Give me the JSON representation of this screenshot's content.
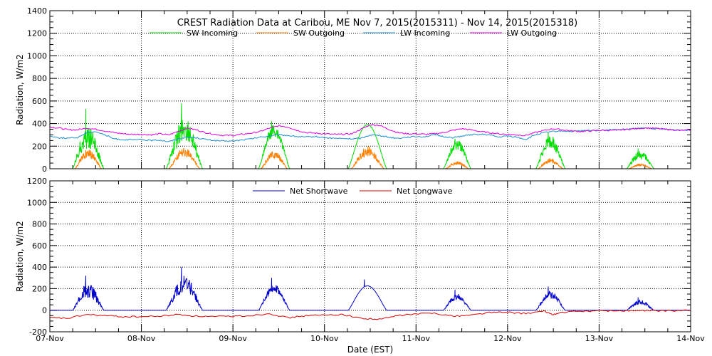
{
  "title": "CREST Radiation Data at Caribou, ME   Nov  7, 2015(2015311) - Nov 14, 2015(2015318)",
  "xlabel": "Date (EST)",
  "x_ticks": [
    "07-Nov",
    "08-Nov",
    "09-Nov",
    "10-Nov",
    "11-Nov",
    "12-Nov",
    "13-Nov",
    "14-Nov"
  ],
  "colors": {
    "sw_in": "#00dd00",
    "sw_out": "#ff7f00",
    "lw_in": "#1e8fd0",
    "lw_out": "#e000e0",
    "net_sw": "#0000cc",
    "net_lw": "#dd0000",
    "grid": "#000000"
  },
  "chart_data": [
    {
      "type": "line",
      "ylabel": "Radiation, W/m2",
      "ylim": [
        0,
        1400
      ],
      "yticks": [
        0,
        200,
        400,
        600,
        800,
        1000,
        1200,
        1400
      ],
      "xlim": [
        0,
        7
      ],
      "grid": true,
      "legend": "top-center",
      "series": [
        {
          "name": "SW Incoming",
          "color_key": "sw_in",
          "kind": "sw_in"
        },
        {
          "name": "SW Outgoing",
          "color_key": "sw_out",
          "kind": "sw_out"
        },
        {
          "name": "LW Incoming",
          "color_key": "lw_in",
          "kind": "lw",
          "points": [
            [
              0,
              290
            ],
            [
              0.1,
              275
            ],
            [
              0.2,
              270
            ],
            [
              0.3,
              275
            ],
            [
              0.4,
              320
            ],
            [
              0.5,
              330
            ],
            [
              0.6,
              300
            ],
            [
              0.7,
              265
            ],
            [
              0.8,
              258
            ],
            [
              0.9,
              255
            ],
            [
              1.0,
              258
            ],
            [
              1.1,
              250
            ],
            [
              1.2,
              255
            ],
            [
              1.3,
              240
            ],
            [
              1.4,
              265
            ],
            [
              1.5,
              280
            ],
            [
              1.6,
              275
            ],
            [
              1.7,
              260
            ],
            [
              1.8,
              250
            ],
            [
              1.9,
              245
            ],
            [
              2.0,
              245
            ],
            [
              2.1,
              255
            ],
            [
              2.2,
              265
            ],
            [
              2.3,
              280
            ],
            [
              2.4,
              290
            ],
            [
              2.5,
              300
            ],
            [
              2.6,
              295
            ],
            [
              2.7,
              285
            ],
            [
              2.8,
              280
            ],
            [
              2.9,
              285
            ],
            [
              3.0,
              275
            ],
            [
              3.1,
              270
            ],
            [
              3.2,
              268
            ],
            [
              3.3,
              265
            ],
            [
              3.4,
              270
            ],
            [
              3.5,
              300
            ],
            [
              3.6,
              295
            ],
            [
              3.7,
              280
            ],
            [
              3.8,
              270
            ],
            [
              3.9,
              280
            ],
            [
              4.0,
              285
            ],
            [
              4.1,
              285
            ],
            [
              4.2,
              300
            ],
            [
              4.3,
              285
            ],
            [
              4.4,
              275
            ],
            [
              4.5,
              290
            ],
            [
              4.6,
              300
            ],
            [
              4.7,
              305
            ],
            [
              4.8,
              300
            ],
            [
              4.9,
              280
            ],
            [
              5.0,
              290
            ],
            [
              5.1,
              280
            ],
            [
              5.2,
              260
            ],
            [
              5.3,
              300
            ],
            [
              5.4,
              320
            ],
            [
              5.5,
              330
            ],
            [
              5.6,
              335
            ],
            [
              5.7,
              330
            ],
            [
              5.8,
              335
            ],
            [
              5.9,
              340
            ],
            [
              6.0,
              340
            ],
            [
              6.1,
              345
            ],
            [
              6.2,
              345
            ],
            [
              6.3,
              350
            ],
            [
              6.4,
              355
            ],
            [
              6.5,
              360
            ],
            [
              6.6,
              355
            ],
            [
              6.7,
              350
            ],
            [
              6.8,
              345
            ],
            [
              6.9,
              340
            ],
            [
              7.0,
              345
            ]
          ]
        },
        {
          "name": "LW Outgoing",
          "color_key": "lw_out",
          "kind": "lw",
          "points": [
            [
              0,
              370
            ],
            [
              0.1,
              360
            ],
            [
              0.2,
              345
            ],
            [
              0.3,
              345
            ],
            [
              0.4,
              360
            ],
            [
              0.5,
              350
            ],
            [
              0.6,
              335
            ],
            [
              0.7,
              320
            ],
            [
              0.8,
              310
            ],
            [
              0.9,
              305
            ],
            [
              1.0,
              305
            ],
            [
              1.1,
              300
            ],
            [
              1.2,
              310
            ],
            [
              1.3,
              300
            ],
            [
              1.4,
              330
            ],
            [
              1.5,
              360
            ],
            [
              1.6,
              345
            ],
            [
              1.7,
              320
            ],
            [
              1.8,
              305
            ],
            [
              1.9,
              295
            ],
            [
              2.0,
              295
            ],
            [
              2.1,
              305
            ],
            [
              2.2,
              315
            ],
            [
              2.3,
              330
            ],
            [
              2.4,
              360
            ],
            [
              2.5,
              380
            ],
            [
              2.6,
              370
            ],
            [
              2.7,
              340
            ],
            [
              2.8,
              320
            ],
            [
              2.9,
              315
            ],
            [
              3.0,
              310
            ],
            [
              3.1,
              305
            ],
            [
              3.2,
              305
            ],
            [
              3.3,
              310
            ],
            [
              3.4,
              350
            ],
            [
              3.5,
              390
            ],
            [
              3.6,
              385
            ],
            [
              3.7,
              350
            ],
            [
              3.8,
              320
            ],
            [
              3.9,
              310
            ],
            [
              4.0,
              310
            ],
            [
              4.1,
              305
            ],
            [
              4.2,
              310
            ],
            [
              4.3,
              320
            ],
            [
              4.4,
              340
            ],
            [
              4.5,
              355
            ],
            [
              4.6,
              345
            ],
            [
              4.7,
              330
            ],
            [
              4.8,
              320
            ],
            [
              4.9,
              310
            ],
            [
              5.0,
              305
            ],
            [
              5.1,
              300
            ],
            [
              5.2,
              295
            ],
            [
              5.3,
              320
            ],
            [
              5.4,
              340
            ],
            [
              5.5,
              355
            ],
            [
              5.6,
              345
            ],
            [
              5.7,
              335
            ],
            [
              5.8,
              330
            ],
            [
              5.9,
              335
            ],
            [
              6.0,
              340
            ],
            [
              6.1,
              340
            ],
            [
              6.2,
              342
            ],
            [
              6.3,
              348
            ],
            [
              6.4,
              355
            ],
            [
              6.5,
              362
            ],
            [
              6.6,
              358
            ],
            [
              6.7,
              352
            ],
            [
              6.8,
              345
            ],
            [
              6.9,
              340
            ],
            [
              7.0,
              345
            ]
          ]
        }
      ],
      "sw_in_days": [
        {
          "center": 0.42,
          "width": 0.34,
          "peak": 400,
          "spike": 530,
          "jag": 0.55
        },
        {
          "center": 1.47,
          "width": 0.4,
          "peak": 460,
          "spike": 580,
          "jag": 0.5
        },
        {
          "center": 2.45,
          "width": 0.34,
          "peak": 400,
          "spike": 420,
          "jag": 0.3
        },
        {
          "center": 3.47,
          "width": 0.42,
          "peak": 395,
          "spike": 395,
          "jag": 0.02
        },
        {
          "center": 4.45,
          "width": 0.3,
          "peak": 260,
          "spike": 265,
          "jag": 0.35
        },
        {
          "center": 5.47,
          "width": 0.32,
          "peak": 300,
          "spike": 320,
          "jag": 0.4
        },
        {
          "center": 6.45,
          "width": 0.3,
          "peak": 160,
          "spike": 180,
          "jag": 0.45
        }
      ],
      "sw_out_peaks": [
        180,
        190,
        160,
        200,
        65,
        90,
        45
      ]
    },
    {
      "type": "line",
      "ylabel": "Radiation, W/m2",
      "ylim": [
        -200,
        1200
      ],
      "yticks": [
        -200,
        0,
        200,
        400,
        600,
        800,
        1000,
        1200
      ],
      "xlim": [
        0,
        7
      ],
      "grid": true,
      "legend": "top-center",
      "series": [
        {
          "name": "Net Shortwave",
          "color_key": "net_sw",
          "kind": "net_sw",
          "peaks": [
            320,
            400,
            300,
            285,
            190,
            220,
            120
          ]
        },
        {
          "name": "Net Longwave",
          "color_key": "net_lw",
          "kind": "lw",
          "points": [
            [
              0,
              -70
            ],
            [
              0.2,
              -75
            ],
            [
              0.4,
              -40
            ],
            [
              0.6,
              -50
            ],
            [
              0.8,
              -60
            ],
            [
              1.0,
              -60
            ],
            [
              1.2,
              -55
            ],
            [
              1.4,
              -40
            ],
            [
              1.6,
              -55
            ],
            [
              1.8,
              -60
            ],
            [
              2.0,
              -55
            ],
            [
              2.2,
              -50
            ],
            [
              2.4,
              -30
            ],
            [
              2.6,
              -70
            ],
            [
              2.8,
              -50
            ],
            [
              3.0,
              -45
            ],
            [
              3.2,
              -40
            ],
            [
              3.4,
              -75
            ],
            [
              3.6,
              -85
            ],
            [
              3.8,
              -50
            ],
            [
              4.0,
              -35
            ],
            [
              4.2,
              -25
            ],
            [
              4.4,
              -55
            ],
            [
              4.6,
              -45
            ],
            [
              4.8,
              -20
            ],
            [
              5.0,
              -20
            ],
            [
              5.2,
              -30
            ],
            [
              5.4,
              -10
            ],
            [
              5.5,
              -40
            ],
            [
              5.6,
              -20
            ],
            [
              5.8,
              -10
            ],
            [
              6.0,
              -5
            ],
            [
              6.2,
              -5
            ],
            [
              6.4,
              -5
            ],
            [
              6.6,
              -5
            ],
            [
              6.8,
              -5
            ],
            [
              7.0,
              0
            ]
          ]
        }
      ]
    }
  ]
}
